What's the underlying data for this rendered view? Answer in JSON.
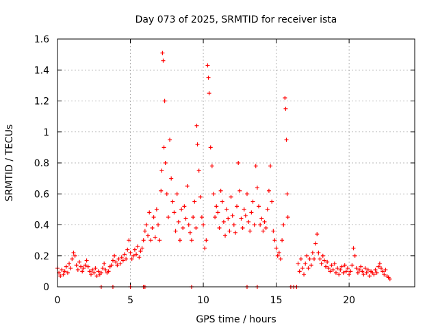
{
  "chart_data": {
    "type": "scatter",
    "title": "Day 073 of 2025, SRMTID for receiver ista",
    "xlabel": "GPS time / hours",
    "ylabel": "SRMTID / TECUs",
    "xlim": [
      0,
      24.5
    ],
    "ylim": [
      0,
      1.6
    ],
    "xticks": [
      0,
      5,
      10,
      15,
      20
    ],
    "xtick_labels": [
      "0",
      "5",
      "10",
      "15",
      "20"
    ],
    "yticks": [
      0,
      0.2,
      0.4,
      0.6,
      0.8,
      1,
      1.2,
      1.4,
      1.6
    ],
    "ytick_labels": [
      "0",
      "0.2",
      "0.4",
      "0.6",
      "0.8",
      "1",
      "1.2",
      "1.4",
      "1.6"
    ],
    "grid": true,
    "marker": "+",
    "color": "#ff0000",
    "series": [
      {
        "name": "SRMTID",
        "points": [
          [
            0.0,
            0.12
          ],
          [
            0.1,
            0.09
          ],
          [
            0.2,
            0.07
          ],
          [
            0.3,
            0.11
          ],
          [
            0.4,
            0.08
          ],
          [
            0.5,
            0.1
          ],
          [
            0.6,
            0.13
          ],
          [
            0.7,
            0.09
          ],
          [
            0.8,
            0.15
          ],
          [
            0.9,
            0.12
          ],
          [
            1.0,
            0.18
          ],
          [
            1.1,
            0.22
          ],
          [
            1.2,
            0.2
          ],
          [
            1.3,
            0.14
          ],
          [
            1.4,
            0.11
          ],
          [
            1.5,
            0.16
          ],
          [
            1.6,
            0.13
          ],
          [
            1.7,
            0.1
          ],
          [
            1.8,
            0.12
          ],
          [
            1.9,
            0.14
          ],
          [
            2.0,
            0.17
          ],
          [
            2.1,
            0.13
          ],
          [
            2.2,
            0.1
          ],
          [
            2.3,
            0.08
          ],
          [
            2.4,
            0.11
          ],
          [
            2.5,
            0.09
          ],
          [
            2.6,
            0.12
          ],
          [
            2.7,
            0.07
          ],
          [
            2.8,
            0.1
          ],
          [
            2.9,
            0.08
          ],
          [
            3.0,
            0.09
          ],
          [
            3.1,
            0.12
          ],
          [
            3.2,
            0.15
          ],
          [
            3.3,
            0.11
          ],
          [
            3.4,
            0.09
          ],
          [
            3.5,
            0.1
          ],
          [
            3.6,
            0.13
          ],
          [
            3.7,
            0.14
          ],
          [
            3.8,
            0.17
          ],
          [
            3.9,
            0.2
          ],
          [
            4.0,
            0.16
          ],
          [
            4.1,
            0.14
          ],
          [
            4.2,
            0.18
          ],
          [
            4.3,
            0.15
          ],
          [
            4.4,
            0.19
          ],
          [
            4.5,
            0.17
          ],
          [
            4.6,
            0.21
          ],
          [
            4.7,
            0.18
          ],
          [
            4.8,
            0.24
          ],
          [
            4.9,
            0.3
          ],
          [
            5.0,
            0.22
          ],
          [
            5.1,
            0.18
          ],
          [
            5.2,
            0.2
          ],
          [
            5.3,
            0.24
          ],
          [
            5.4,
            0.21
          ],
          [
            5.5,
            0.26
          ],
          [
            5.6,
            0.19
          ],
          [
            5.7,
            0.23
          ],
          [
            5.8,
            0.25
          ],
          [
            5.9,
            0.3
          ],
          [
            6.0,
            0.36
          ],
          [
            6.1,
            0.4
          ],
          [
            6.2,
            0.33
          ],
          [
            6.3,
            0.48
          ],
          [
            6.4,
            0.3
          ],
          [
            6.5,
            0.38
          ],
          [
            6.6,
            0.45
          ],
          [
            6.7,
            0.32
          ],
          [
            6.8,
            0.5
          ],
          [
            6.9,
            0.4
          ],
          [
            7.0,
            0.3
          ],
          [
            7.1,
            0.62
          ],
          [
            7.15,
            0.75
          ],
          [
            7.2,
            1.51
          ],
          [
            7.25,
            1.46
          ],
          [
            7.3,
            0.9
          ],
          [
            7.35,
            1.2
          ],
          [
            7.4,
            0.8
          ],
          [
            7.5,
            0.6
          ],
          [
            7.6,
            0.45
          ],
          [
            7.7,
            0.95
          ],
          [
            7.8,
            0.7
          ],
          [
            7.9,
            0.55
          ],
          [
            8.0,
            0.48
          ],
          [
            8.1,
            0.36
          ],
          [
            8.2,
            0.6
          ],
          [
            8.3,
            0.42
          ],
          [
            8.4,
            0.3
          ],
          [
            8.5,
            0.5
          ],
          [
            8.6,
            0.38
          ],
          [
            8.7,
            0.52
          ],
          [
            8.8,
            0.44
          ],
          [
            8.9,
            0.65
          ],
          [
            9.0,
            0.4
          ],
          [
            9.1,
            0.35
          ],
          [
            9.2,
            0.3
          ],
          [
            9.3,
            0.45
          ],
          [
            9.4,
            0.55
          ],
          [
            9.5,
            0.38
          ],
          [
            9.55,
            1.04
          ],
          [
            9.6,
            0.92
          ],
          [
            9.7,
            0.75
          ],
          [
            9.8,
            0.58
          ],
          [
            9.9,
            0.45
          ],
          [
            10.0,
            0.4
          ],
          [
            10.1,
            0.25
          ],
          [
            10.2,
            0.3
          ],
          [
            10.3,
            1.43
          ],
          [
            10.35,
            1.35
          ],
          [
            10.4,
            1.25
          ],
          [
            10.5,
            0.9
          ],
          [
            10.6,
            0.78
          ],
          [
            10.7,
            0.6
          ],
          [
            10.8,
            0.45
          ],
          [
            10.9,
            0.52
          ],
          [
            11.0,
            0.48
          ],
          [
            11.1,
            0.38
          ],
          [
            11.2,
            0.62
          ],
          [
            11.3,
            0.55
          ],
          [
            11.4,
            0.42
          ],
          [
            11.5,
            0.33
          ],
          [
            11.6,
            0.5
          ],
          [
            11.7,
            0.44
          ],
          [
            11.8,
            0.36
          ],
          [
            11.9,
            0.58
          ],
          [
            12.0,
            0.46
          ],
          [
            12.1,
            0.4
          ],
          [
            12.2,
            0.35
          ],
          [
            12.3,
            0.52
          ],
          [
            12.4,
            0.8
          ],
          [
            12.5,
            0.62
          ],
          [
            12.6,
            0.44
          ],
          [
            12.7,
            0.38
          ],
          [
            12.8,
            0.5
          ],
          [
            12.9,
            0.46
          ],
          [
            13.0,
            0.6
          ],
          [
            13.1,
            0.42
          ],
          [
            13.2,
            0.36
          ],
          [
            13.3,
            0.48
          ],
          [
            13.4,
            0.55
          ],
          [
            13.5,
            0.4
          ],
          [
            13.6,
            0.78
          ],
          [
            13.7,
            0.64
          ],
          [
            13.8,
            0.52
          ],
          [
            13.9,
            0.4
          ],
          [
            14.0,
            0.44
          ],
          [
            14.1,
            0.36
          ],
          [
            14.2,
            0.42
          ],
          [
            14.3,
            0.38
          ],
          [
            14.4,
            0.5
          ],
          [
            14.5,
            0.62
          ],
          [
            14.6,
            0.78
          ],
          [
            14.7,
            0.55
          ],
          [
            14.8,
            0.36
          ],
          [
            14.9,
            0.3
          ],
          [
            15.0,
            0.25
          ],
          [
            15.1,
            0.2
          ],
          [
            15.2,
            0.22
          ],
          [
            15.3,
            0.18
          ],
          [
            15.4,
            0.3
          ],
          [
            15.5,
            0.4
          ],
          [
            15.6,
            1.22
          ],
          [
            15.65,
            1.15
          ],
          [
            15.7,
            0.95
          ],
          [
            15.75,
            0.6
          ],
          [
            15.8,
            0.45
          ],
          [
            16.5,
            0.15
          ],
          [
            16.6,
            0.1
          ],
          [
            16.7,
            0.18
          ],
          [
            16.8,
            0.12
          ],
          [
            16.9,
            0.08
          ],
          [
            17.0,
            0.15
          ],
          [
            17.1,
            0.2
          ],
          [
            17.2,
            0.12
          ],
          [
            17.3,
            0.18
          ],
          [
            17.4,
            0.14
          ],
          [
            17.5,
            0.22
          ],
          [
            17.6,
            0.18
          ],
          [
            17.7,
            0.28
          ],
          [
            17.8,
            0.34
          ],
          [
            17.9,
            0.22
          ],
          [
            18.0,
            0.18
          ],
          [
            18.1,
            0.15
          ],
          [
            18.2,
            0.2
          ],
          [
            18.3,
            0.17
          ],
          [
            18.4,
            0.13
          ],
          [
            18.5,
            0.16
          ],
          [
            18.6,
            0.12
          ],
          [
            18.7,
            0.1
          ],
          [
            18.8,
            0.14
          ],
          [
            18.9,
            0.11
          ],
          [
            19.0,
            0.15
          ],
          [
            19.1,
            0.09
          ],
          [
            19.2,
            0.12
          ],
          [
            19.3,
            0.08
          ],
          [
            19.4,
            0.11
          ],
          [
            19.5,
            0.13
          ],
          [
            19.6,
            0.09
          ],
          [
            19.7,
            0.14
          ],
          [
            19.8,
            0.1
          ],
          [
            19.9,
            0.12
          ],
          [
            20.0,
            0.08
          ],
          [
            20.1,
            0.1
          ],
          [
            20.2,
            0.14
          ],
          [
            20.3,
            0.25
          ],
          [
            20.4,
            0.2
          ],
          [
            20.5,
            0.12
          ],
          [
            20.6,
            0.09
          ],
          [
            20.7,
            0.11
          ],
          [
            20.8,
            0.13
          ],
          [
            20.9,
            0.1
          ],
          [
            21.0,
            0.08
          ],
          [
            21.1,
            0.12
          ],
          [
            21.2,
            0.09
          ],
          [
            21.3,
            0.11
          ],
          [
            21.4,
            0.07
          ],
          [
            21.5,
            0.1
          ],
          [
            21.6,
            0.09
          ],
          [
            21.7,
            0.08
          ],
          [
            21.8,
            0.11
          ],
          [
            21.9,
            0.09
          ],
          [
            22.0,
            0.13
          ],
          [
            22.1,
            0.15
          ],
          [
            22.2,
            0.12
          ],
          [
            22.3,
            0.1
          ],
          [
            22.4,
            0.08
          ],
          [
            22.5,
            0.11
          ],
          [
            22.6,
            0.07
          ],
          [
            22.7,
            0.06
          ],
          [
            22.8,
            0.05
          ]
        ]
      },
      {
        "name": "gap-markers",
        "points": [
          [
            3.0,
            0
          ],
          [
            3.8,
            0
          ],
          [
            5.0,
            0
          ],
          [
            5.9,
            0
          ],
          [
            6.0,
            0
          ],
          [
            9.2,
            0
          ],
          [
            13.0,
            0
          ],
          [
            13.7,
            0
          ],
          [
            16.0,
            0
          ],
          [
            16.2,
            0
          ],
          [
            16.4,
            0
          ]
        ]
      }
    ]
  }
}
